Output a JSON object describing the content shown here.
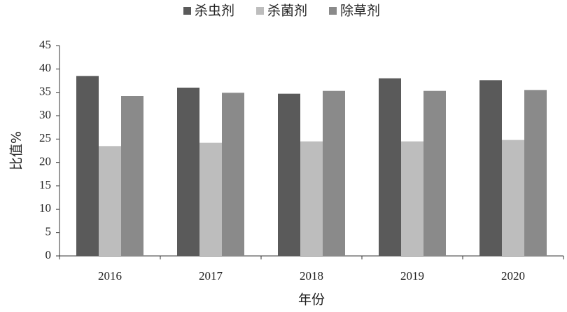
{
  "chart_data": {
    "type": "bar",
    "x_label": "年份",
    "y_label": "比值%",
    "categories": [
      "2016",
      "2017",
      "2018",
      "2019",
      "2020"
    ],
    "series": [
      {
        "name": "杀虫剂",
        "color": "#5a5a5a",
        "values": [
          38.5,
          36.0,
          34.7,
          38.0,
          37.6
        ]
      },
      {
        "name": "杀菌剂",
        "color": "#bdbdbd",
        "values": [
          23.5,
          24.2,
          24.5,
          24.5,
          24.8
        ]
      },
      {
        "name": "除草剂",
        "color": "#8a8a8a",
        "values": [
          34.2,
          34.9,
          35.3,
          35.3,
          35.5
        ]
      }
    ],
    "ylim": [
      0,
      45
    ],
    "yticks": [
      0,
      5,
      10,
      15,
      20,
      25,
      30,
      35,
      40,
      45
    ],
    "legend": "top"
  }
}
